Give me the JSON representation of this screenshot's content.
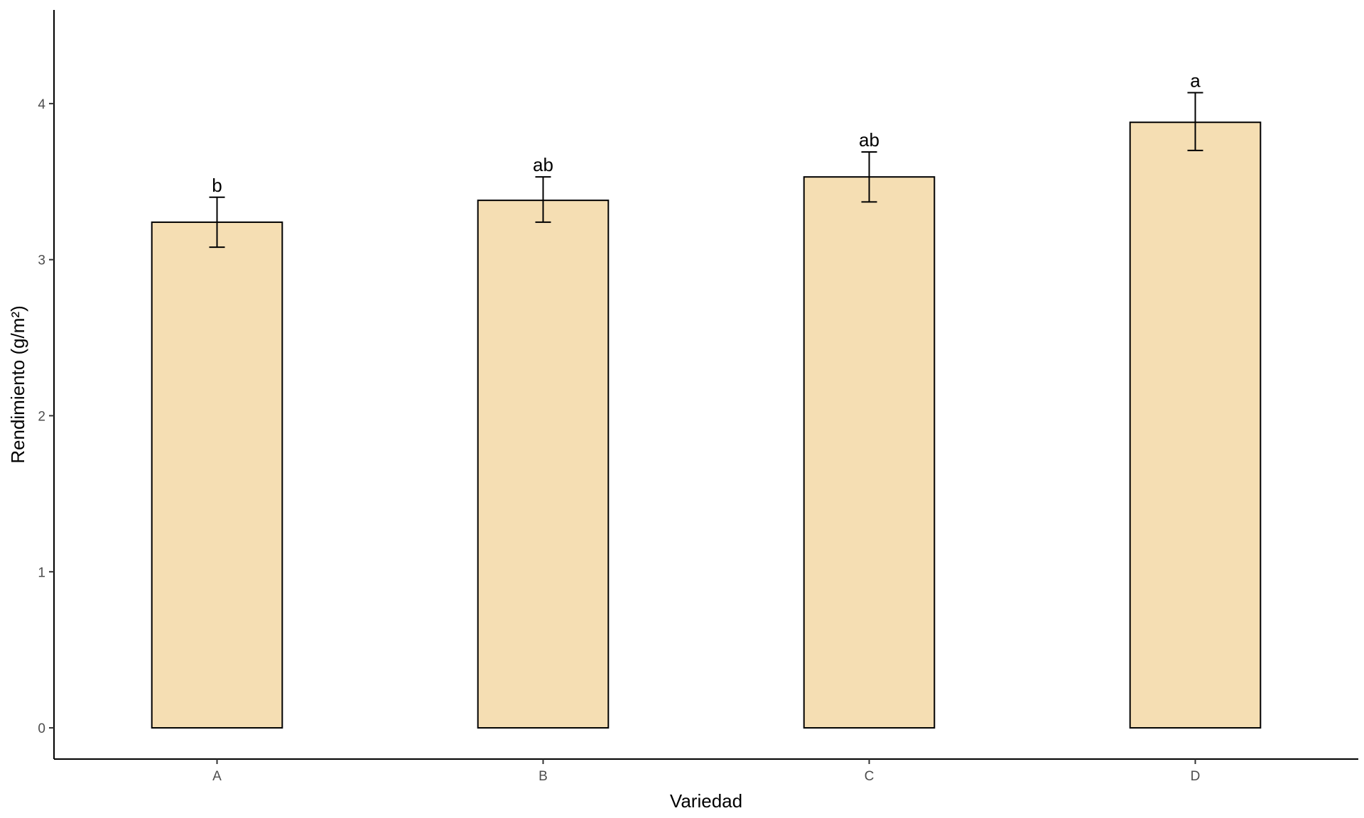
{
  "chart_data": {
    "type": "bar",
    "title": "",
    "xlabel": "Variedad",
    "ylabel": "Rendimiento (g/m²)",
    "categories": [
      "A",
      "B",
      "C",
      "D"
    ],
    "values": [
      3.24,
      3.38,
      3.53,
      3.88
    ],
    "error_low": [
      3.08,
      3.24,
      3.37,
      3.7
    ],
    "error_high": [
      3.4,
      3.53,
      3.69,
      4.07
    ],
    "group_letters": [
      "b",
      "ab",
      "ab",
      "a"
    ],
    "yticks": [
      0,
      1,
      2,
      3,
      4
    ],
    "ylim": [
      -0.2,
      4.6
    ],
    "grid": false,
    "legend": "none",
    "colors": {
      "bar_fill": "#F5DEB3",
      "bar_stroke": "#000000",
      "axis": "#000000",
      "tick_label": "#4d4d4d"
    }
  }
}
